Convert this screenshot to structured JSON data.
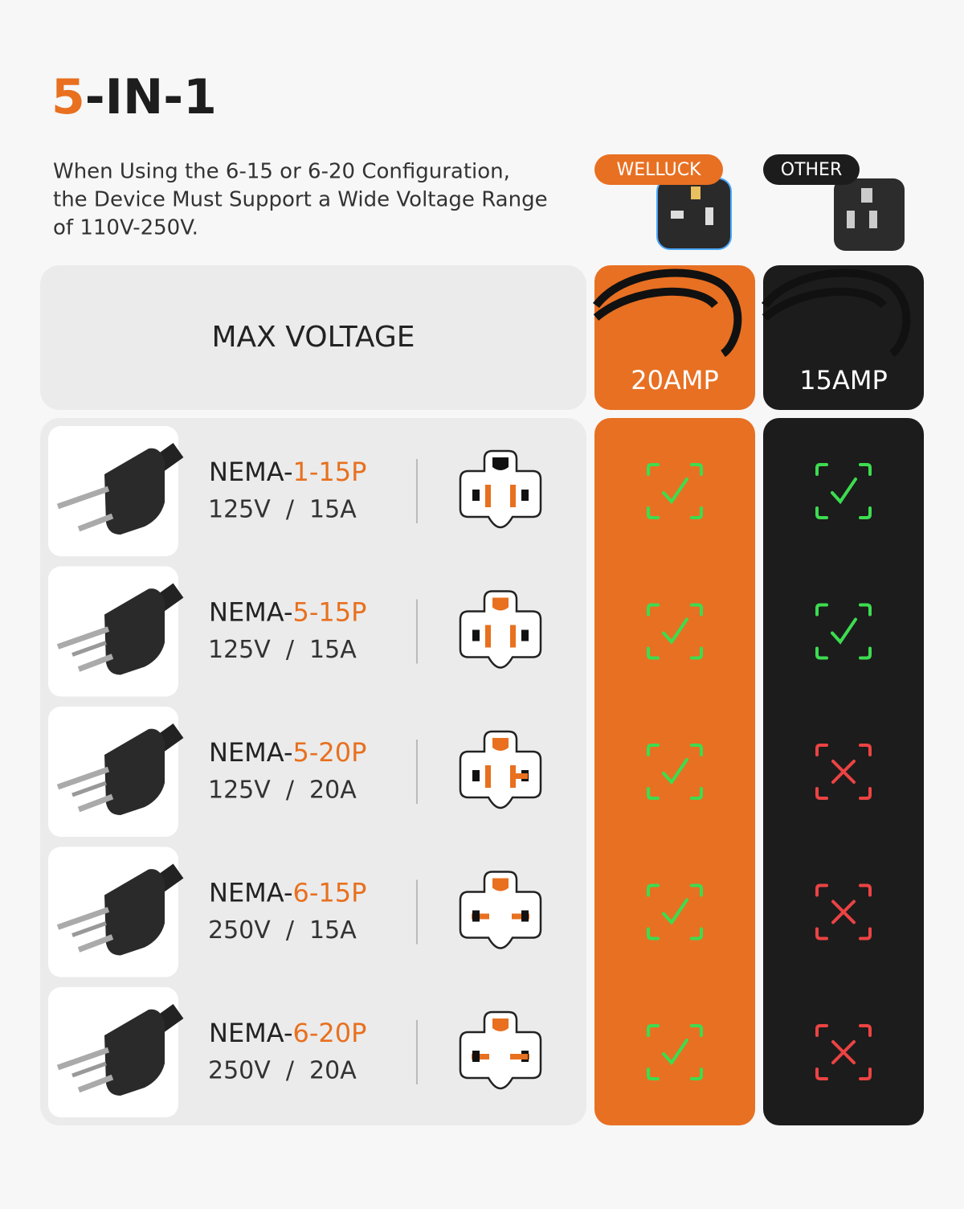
{
  "title": {
    "accent": "5",
    "rest": "-IN-1"
  },
  "description": [
    "When Using the 6-15 or 6-20 Configuration,",
    "the Device Must Support a Wide Voltage Range",
    "of 110V-250V."
  ],
  "header": {
    "label": "MAX VOLTAGE"
  },
  "columns": [
    {
      "badge": "WELLUCK",
      "rating": "20AMP"
    },
    {
      "badge": "OTHER",
      "rating": "15AMP"
    }
  ],
  "rows": [
    {
      "prefix": "NEMA-",
      "code": "1-15P",
      "spec": "125V  /  15A",
      "support": [
        true,
        true
      ]
    },
    {
      "prefix": "NEMA-",
      "code": "5-15P",
      "spec": "125V  /  15A",
      "support": [
        true,
        true
      ]
    },
    {
      "prefix": "NEMA-",
      "code": "5-20P",
      "spec": "125V  /  20A",
      "support": [
        true,
        false
      ]
    },
    {
      "prefix": "NEMA-",
      "code": "6-15P",
      "spec": "250V  /  15A",
      "support": [
        true,
        false
      ]
    },
    {
      "prefix": "NEMA-",
      "code": "6-20P",
      "spec": "250V  /  20A",
      "support": [
        true,
        false
      ]
    }
  ]
}
